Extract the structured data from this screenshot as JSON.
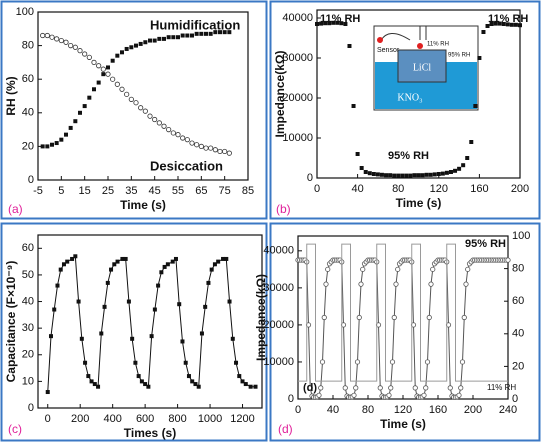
{
  "chart_data": [
    {
      "type": "line",
      "panel_label": "(a)",
      "xlabel": "Time (s)",
      "ylabel": "RH (%)",
      "xlim": [
        -5,
        85
      ],
      "ylim": [
        0,
        100
      ],
      "xticks": [
        -5,
        5,
        15,
        25,
        35,
        45,
        55,
        65,
        75,
        85
      ],
      "yticks": [
        0,
        20,
        40,
        60,
        80,
        100
      ],
      "x": [
        -3,
        -1,
        1,
        3,
        5,
        7,
        9,
        11,
        13,
        15,
        17,
        19,
        21,
        23,
        25,
        27,
        29,
        31,
        33,
        35,
        37,
        39,
        41,
        43,
        45,
        47,
        49,
        51,
        53,
        55,
        57,
        59,
        61,
        63,
        65,
        67,
        69,
        71,
        73,
        75,
        77
      ],
      "series": [
        {
          "name": "Humidification",
          "color": "#111111",
          "marker": "square-filled",
          "line": false,
          "values": [
            20,
            20,
            21,
            22,
            24,
            27,
            31,
            35,
            40,
            44,
            49,
            54,
            58,
            63,
            67,
            71,
            74,
            76,
            78,
            79,
            80,
            81,
            82,
            83,
            83,
            84,
            84,
            85,
            85,
            85,
            86,
            86,
            86,
            87,
            87,
            87,
            87,
            88,
            88,
            88,
            88
          ]
        },
        {
          "name": "Desiccation",
          "color": "#333333",
          "marker": "circle-open",
          "line": false,
          "values": [
            86,
            86,
            85,
            84,
            83,
            82,
            80,
            79,
            77,
            75,
            73,
            70,
            68,
            66,
            63,
            60,
            57,
            54,
            51,
            48,
            46,
            43,
            41,
            38,
            36,
            34,
            32,
            30,
            28,
            27,
            25,
            24,
            22,
            21,
            20,
            19,
            19,
            18,
            17,
            17,
            16
          ]
        }
      ],
      "annotations": []
    },
    {
      "type": "line",
      "panel_label": "(b)",
      "xlabel": "Time (s)",
      "ylabel": "Impedance(kΩ)",
      "xlim": [
        0,
        200
      ],
      "ylim": [
        0,
        42000
      ],
      "xticks": [
        0,
        40,
        80,
        120,
        160,
        200
      ],
      "yticks": [
        0,
        10000,
        20000,
        30000,
        40000
      ],
      "x": [
        0,
        4,
        8,
        12,
        16,
        20,
        24,
        28,
        32,
        36,
        40,
        44,
        48,
        52,
        56,
        60,
        64,
        68,
        72,
        76,
        80,
        84,
        88,
        92,
        96,
        100,
        104,
        108,
        112,
        116,
        120,
        124,
        128,
        132,
        136,
        140,
        144,
        148,
        152,
        156,
        160,
        164,
        168,
        172,
        176,
        180,
        184,
        188,
        192,
        196,
        200
      ],
      "series": [
        {
          "color": "#111111",
          "marker": "square-filled",
          "line": false,
          "values": [
            38500,
            38600,
            38700,
            38700,
            38800,
            38800,
            38700,
            38500,
            33000,
            18000,
            6000,
            2500,
            1500,
            1200,
            1000,
            900,
            800,
            700,
            700,
            600,
            600,
            600,
            600,
            600,
            700,
            700,
            700,
            800,
            800,
            900,
            1000,
            1100,
            1300,
            1500,
            1800,
            2300,
            3200,
            5000,
            9000,
            18000,
            30000,
            36500,
            38000,
            38500,
            38600,
            38600,
            38500,
            38400,
            38300,
            38300,
            38200
          ]
        }
      ],
      "annotations": [
        "11% RH",
        "11% RH",
        "95% RH"
      ],
      "inset": {
        "sensor": "Sensor",
        "top_rh": "11% RH",
        "bottom_rh": "95% RH",
        "salt": "LiCl",
        "solution": "KNO₃"
      }
    },
    {
      "type": "line",
      "panel_label": "(c)",
      "xlabel": "Times (s)",
      "ylabel": "Capacitance (F×10⁻⁹)",
      "xlim": [
        -60,
        1320
      ],
      "ylim": [
        0,
        65
      ],
      "xticks": [
        0,
        200,
        400,
        600,
        800,
        1000,
        1200
      ],
      "yticks": [
        0,
        10,
        20,
        30,
        40,
        50,
        60
      ],
      "x": [
        0,
        20,
        40,
        60,
        80,
        100,
        120,
        150,
        170,
        190,
        210,
        230,
        250,
        270,
        290,
        310,
        330,
        350,
        370,
        390,
        410,
        430,
        460,
        480,
        500,
        520,
        540,
        560,
        580,
        600,
        620,
        640,
        660,
        680,
        700,
        720,
        740,
        770,
        790,
        810,
        830,
        850,
        870,
        890,
        910,
        930,
        950,
        970,
        990,
        1010,
        1030,
        1050,
        1080,
        1100,
        1120,
        1140,
        1160,
        1180,
        1200,
        1220,
        1250,
        1280
      ],
      "series": [
        {
          "color": "#111111",
          "marker": "square-filled",
          "line": true,
          "values": [
            6,
            27,
            37,
            46,
            52,
            54,
            55,
            56,
            57,
            40,
            26,
            17,
            12,
            10,
            9,
            8,
            28,
            38,
            47,
            52,
            54,
            55,
            56,
            56,
            40,
            26,
            17,
            12,
            10,
            9,
            8,
            27,
            37,
            46,
            51,
            53,
            54,
            55,
            56,
            39,
            25,
            17,
            12,
            10,
            9,
            8,
            28,
            38,
            47,
            52,
            54,
            55,
            56,
            56,
            40,
            26,
            17,
            12,
            10,
            9,
            8,
            8
          ]
        }
      ],
      "annotations": []
    },
    {
      "type": "line",
      "panel_label": "(d)",
      "xlabel": "Time (s)",
      "ylabel": "Impedance(kΩ)",
      "xlim": [
        0,
        240
      ],
      "ylim": [
        0,
        44000
      ],
      "y2lim": [
        0,
        100
      ],
      "xticks": [
        0,
        40,
        80,
        120,
        160,
        200,
        240
      ],
      "yticks": [
        0,
        10000,
        20000,
        30000,
        40000
      ],
      "y2ticks": [
        0,
        20,
        40,
        60,
        80,
        100
      ],
      "series": [
        {
          "color": "#555555",
          "marker": "circle-open",
          "line": true,
          "x": [
            0,
            2,
            4,
            6,
            8,
            10,
            12,
            14,
            16,
            18,
            20,
            22,
            24,
            26,
            28,
            30,
            32,
            34,
            36,
            38,
            40,
            42,
            44,
            46,
            48,
            50,
            52,
            54,
            56,
            58,
            60,
            62,
            64,
            66,
            68,
            70,
            72,
            74,
            76,
            78,
            80,
            82,
            84,
            86,
            88,
            90,
            92,
            94,
            96,
            98,
            100,
            102,
            104,
            106,
            108,
            110,
            112,
            114,
            116,
            118,
            120,
            122,
            124,
            126,
            128,
            130,
            132,
            134,
            136,
            138,
            140,
            142,
            144,
            146,
            148,
            150,
            152,
            154,
            156,
            158,
            160,
            162,
            164,
            166,
            168,
            170,
            172,
            174,
            176,
            178,
            180,
            182,
            184,
            186,
            188,
            190,
            192,
            194,
            196,
            198,
            200,
            202,
            204,
            206,
            208,
            210,
            212,
            214,
            216,
            218,
            220,
            222,
            224,
            226,
            228,
            230,
            232,
            234,
            236,
            238,
            240
          ],
          "values": [
            37500,
            37500,
            37500,
            37500,
            37500,
            37000,
            20000,
            3000,
            800,
            500,
            500,
            600,
            1000,
            3000,
            10000,
            22000,
            31000,
            35000,
            36500,
            37000,
            37500,
            37500,
            37500,
            37500,
            37500,
            37000,
            20000,
            3000,
            800,
            500,
            500,
            600,
            1000,
            3000,
            10000,
            22000,
            31000,
            35000,
            36500,
            37000,
            37500,
            37500,
            37500,
            37500,
            37500,
            37000,
            20000,
            3000,
            800,
            500,
            500,
            600,
            1000,
            3000,
            10000,
            22000,
            31000,
            35000,
            36500,
            37000,
            37500,
            37500,
            37500,
            37500,
            37500,
            37000,
            20000,
            3000,
            800,
            500,
            500,
            600,
            1000,
            3000,
            10000,
            22000,
            31000,
            35000,
            36500,
            37000,
            37500,
            37500,
            37500,
            37500,
            37500,
            37000,
            20000,
            3000,
            800,
            500,
            500,
            600,
            1000,
            3000,
            10000,
            22000,
            31000,
            35000,
            36500,
            37000,
            37500,
            37500,
            37500,
            37500,
            37500,
            37500,
            37500,
            37500,
            37500,
            37500,
            37500,
            37500,
            37500,
            37500,
            37500,
            37500,
            37500,
            37500,
            37500,
            37500,
            37500
          ]
        },
        {
          "color": "#9a9a9a",
          "marker": "none",
          "line": true,
          "axis": "y2",
          "x": [
            0,
            10,
            10,
            20,
            20,
            50,
            50,
            60,
            60,
            90,
            90,
            100,
            100,
            130,
            130,
            140,
            140,
            170,
            170,
            180,
            180,
            240
          ],
          "values": [
            11,
            11,
            95,
            95,
            11,
            11,
            95,
            95,
            11,
            11,
            95,
            95,
            11,
            11,
            95,
            95,
            11,
            11,
            95,
            95,
            11,
            11
          ]
        }
      ],
      "annotations": [
        "95% RH",
        "11% RH",
        "(d)"
      ]
    }
  ]
}
